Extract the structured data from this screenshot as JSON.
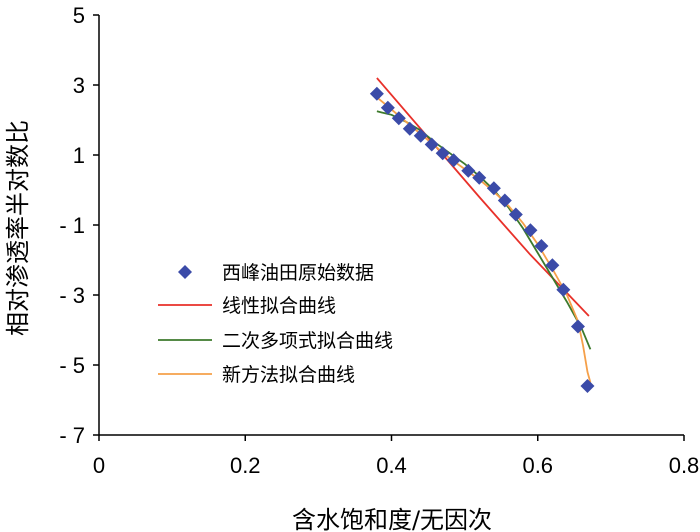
{
  "chart_data": {
    "type": "scatter",
    "title": "",
    "xlabel": "含水饱和度/无因次",
    "ylabel": "相对渗透率半对数比",
    "xlim": [
      0,
      0.8
    ],
    "ylim": [
      -7,
      5
    ],
    "x_ticks": [
      "0",
      "0.2",
      "0.4",
      "0.6",
      "0.8"
    ],
    "y_ticks": [
      "5",
      "3",
      "1",
      "- 1",
      "- 3",
      "- 5",
      "- 7"
    ],
    "grid": false,
    "legend_position": "left",
    "colors": {
      "original": "#3b4ba8",
      "linear": "#e8312a",
      "quadratic": "#3d7a2c",
      "new_method": "#f5a04a"
    },
    "series": [
      {
        "name": "西峰油田原始数据",
        "kind": "markers",
        "marker": "diamond",
        "points": [
          [
            0.38,
            2.75
          ],
          [
            0.395,
            2.35
          ],
          [
            0.41,
            2.05
          ],
          [
            0.425,
            1.75
          ],
          [
            0.44,
            1.55
          ],
          [
            0.455,
            1.3
          ],
          [
            0.47,
            1.05
          ],
          [
            0.485,
            0.85
          ],
          [
            0.505,
            0.55
          ],
          [
            0.52,
            0.35
          ],
          [
            0.54,
            0.05
          ],
          [
            0.555,
            -0.3
          ],
          [
            0.57,
            -0.7
          ],
          [
            0.59,
            -1.15
          ],
          [
            0.605,
            -1.6
          ],
          [
            0.62,
            -2.15
          ],
          [
            0.635,
            -2.85
          ],
          [
            0.655,
            -3.9
          ],
          [
            0.668,
            -5.6
          ]
        ]
      },
      {
        "name": "线性拟合曲线",
        "kind": "line",
        "points": [
          [
            0.38,
            3.2
          ],
          [
            0.45,
            1.5
          ],
          [
            0.52,
            -0.2
          ],
          [
            0.59,
            -1.85
          ],
          [
            0.67,
            -3.6
          ]
        ]
      },
      {
        "name": "二次多项式拟合曲线",
        "kind": "line",
        "points": [
          [
            0.38,
            2.25
          ],
          [
            0.4,
            2.15
          ],
          [
            0.42,
            1.95
          ],
          [
            0.44,
            1.7
          ],
          [
            0.46,
            1.35
          ],
          [
            0.48,
            1.05
          ],
          [
            0.5,
            0.75
          ],
          [
            0.52,
            0.4
          ],
          [
            0.54,
            0.0
          ],
          [
            0.56,
            -0.5
          ],
          [
            0.58,
            -1.1
          ],
          [
            0.6,
            -1.8
          ],
          [
            0.62,
            -2.5
          ],
          [
            0.64,
            -3.2
          ],
          [
            0.66,
            -3.95
          ],
          [
            0.672,
            -4.55
          ]
        ]
      },
      {
        "name": "新方法拟合曲线",
        "kind": "line",
        "points": [
          [
            0.38,
            2.65
          ],
          [
            0.4,
            2.3
          ],
          [
            0.42,
            1.95
          ],
          [
            0.44,
            1.6
          ],
          [
            0.46,
            1.25
          ],
          [
            0.48,
            0.9
          ],
          [
            0.5,
            0.6
          ],
          [
            0.52,
            0.3
          ],
          [
            0.54,
            -0.05
          ],
          [
            0.56,
            -0.45
          ],
          [
            0.58,
            -0.95
          ],
          [
            0.6,
            -1.55
          ],
          [
            0.62,
            -2.25
          ],
          [
            0.64,
            -3.0
          ],
          [
            0.655,
            -3.75
          ],
          [
            0.662,
            -4.45
          ],
          [
            0.668,
            -5.2
          ],
          [
            0.672,
            -5.5
          ]
        ]
      }
    ]
  }
}
